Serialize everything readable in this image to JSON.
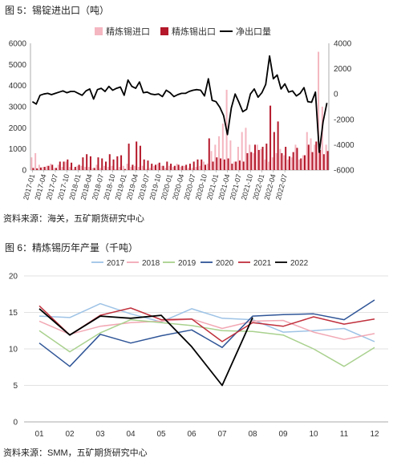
{
  "figure1": {
    "title": "图 5：锡锭进出口（吨）",
    "source": "资料来源：海关，五矿期货研究中心"
  },
  "figure2": {
    "title": "图 6：精炼锡历年产量（千吨）",
    "source": "资料来源：SMM，五矿期货研究中心"
  },
  "colors": {
    "import": "#f4b6c0",
    "export": "#b4182a",
    "net": "#000000",
    "y2017": "#9ec3e6",
    "y2018": "#f2a8b4",
    "y2019": "#a9d18e",
    "y2020": "#2f5597",
    "y2021": "#c0303c",
    "y2022": "#000000"
  },
  "chart_data": [
    {
      "type": "bar",
      "title": "",
      "legend_placement": "top",
      "ylim_left": [
        0,
        6000
      ],
      "ylim_right": [
        -6000,
        4000
      ],
      "left_ticks": [
        "0",
        "1000",
        "2000",
        "3000",
        "4000",
        "5000",
        "6000"
      ],
      "right_ticks": [
        "-6000",
        "-4000",
        "-2000",
        "0",
        "2000",
        "4000"
      ],
      "x_tick_labels": [
        "2017-01",
        "2017-04",
        "2017-07",
        "2017-10",
        "2018-01",
        "2018-04",
        "2018-07",
        "2018-10",
        "2019-01",
        "2019-04",
        "2019-07",
        "2019-10",
        "2020-01",
        "2020-04",
        "2020-07",
        "2020-10",
        "2021-01",
        "2021-04",
        "2021-07",
        "2021-10",
        "2022-01",
        "2022-04",
        "2022-07"
      ],
      "series": [
        {
          "name": "精炼锡进口",
          "kind": "bar",
          "axis": "left",
          "values": [
            600,
            800,
            250,
            150,
            200,
            300,
            100,
            250,
            150,
            400,
            150,
            50,
            200,
            200,
            150,
            150,
            100,
            250,
            100,
            200,
            150,
            200,
            50,
            150,
            200,
            300,
            150,
            200,
            150,
            200,
            50,
            100,
            200,
            300,
            200,
            100,
            200,
            150,
            300,
            150,
            200,
            100,
            100,
            150,
            200,
            400,
            300,
            900,
            1200,
            1600,
            2200,
            3800,
            1400,
            400,
            1100,
            1800,
            2000,
            1200,
            800,
            1200,
            1000,
            500,
            400,
            600,
            800,
            1000,
            700,
            500,
            600,
            1200,
            500,
            700,
            1800,
            1500,
            1200,
            5600,
            3000,
            1200
          ]
        },
        {
          "name": "精炼锡出口",
          "kind": "bar",
          "axis": "left",
          "values": [
            100,
            80,
            120,
            150,
            200,
            250,
            100,
            400,
            400,
            500,
            350,
            150,
            250,
            600,
            750,
            650,
            100,
            600,
            550,
            400,
            750,
            500,
            650,
            700,
            50,
            1250,
            250,
            1350,
            1150,
            500,
            450,
            300,
            250,
            350,
            200,
            400,
            300,
            200,
            250,
            200,
            250,
            300,
            400,
            500,
            500,
            250,
            1500,
            400,
            600,
            550,
            500,
            550,
            300,
            400,
            450,
            400,
            800,
            850,
            1200,
            950,
            1100,
            1250,
            3050,
            1800,
            2300,
            800,
            1100,
            650,
            850,
            1050,
            550,
            700,
            1200,
            850,
            1350,
            950,
            750,
            900
          ]
        },
        {
          "name": "净出口量",
          "kind": "line",
          "axis": "right",
          "values": [
            -600,
            -800,
            -100,
            0,
            50,
            -50,
            50,
            150,
            250,
            100,
            200,
            200,
            50,
            -100,
            250,
            400,
            -400,
            350,
            450,
            200,
            600,
            300,
            450,
            550,
            -100,
            1100,
            600,
            450,
            950,
            100,
            150,
            0,
            -50,
            0,
            -200,
            300,
            100,
            -200,
            -50,
            50,
            50,
            200,
            300,
            350,
            300,
            -150,
            1200,
            -500,
            -600,
            -1050,
            -1700,
            -3200,
            -1100,
            0,
            -650,
            -1400,
            -1200,
            0,
            400,
            -250,
            100,
            750,
            3000,
            1200,
            1500,
            400,
            800,
            150,
            250,
            -150,
            50,
            500,
            -600,
            -650,
            150,
            -4600,
            -2200,
            -700
          ]
        }
      ]
    },
    {
      "type": "line",
      "title": "",
      "legend_placement": "top",
      "ylim": [
        0,
        20
      ],
      "y_ticks": [
        "0",
        "5",
        "10",
        "15",
        "20"
      ],
      "categories": [
        "01",
        "02",
        "03",
        "04",
        "05",
        "06",
        "07",
        "08",
        "09",
        "10",
        "11",
        "12"
      ],
      "series": [
        {
          "name": "2017",
          "values": [
            14.5,
            14.3,
            16.2,
            14.8,
            13.7,
            15.5,
            14.2,
            14.0,
            12.3,
            12.5,
            12.8,
            11.0
          ]
        },
        {
          "name": "2018",
          "values": [
            13.8,
            12.0,
            13.1,
            13.6,
            13.8,
            14.1,
            12.8,
            13.8,
            13.9,
            12.3,
            11.3,
            12.1
          ]
        },
        {
          "name": "2019",
          "values": [
            12.5,
            9.6,
            12.2,
            14.0,
            13.6,
            13.2,
            12.5,
            12.4,
            11.9,
            10.0,
            7.6,
            10.2
          ]
        },
        {
          "name": "2020",
          "values": [
            10.8,
            7.6,
            12.0,
            10.8,
            11.8,
            12.6,
            10.2,
            14.5,
            14.7,
            14.8,
            14.0,
            16.7
          ]
        },
        {
          "name": "2021",
          "values": [
            15.9,
            11.9,
            14.6,
            15.6,
            14.0,
            14.1,
            11.0,
            13.6,
            13.1,
            14.4,
            13.4,
            14.1
          ]
        },
        {
          "name": "2022",
          "values": [
            15.5,
            11.9,
            14.5,
            14.2,
            14.6,
            10.3,
            5.0,
            14.3,
            null,
            null,
            null,
            null
          ]
        }
      ]
    }
  ]
}
